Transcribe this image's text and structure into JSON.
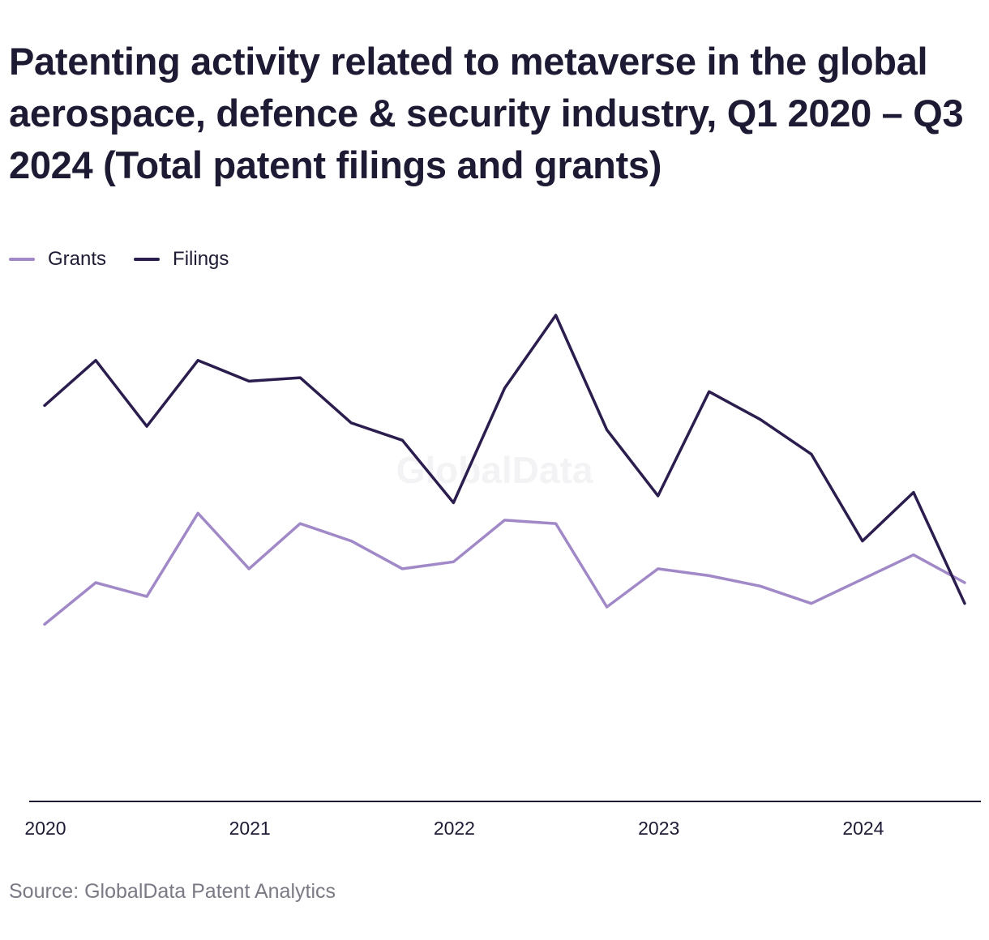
{
  "title": "Patenting activity related to metaverse in the global aerospace, defence & security industry, Q1 2020 – Q3 2024 (Total patent filings and grants)",
  "source": "Source: GlobalData Patent Analytics",
  "watermark": "GlobalData",
  "colors": {
    "grants": "#a189c8",
    "filings": "#2b1d4d",
    "axis": "#1d1a33",
    "text": "#1d1a33",
    "source": "#7a7a85",
    "watermark": "#f3f3f5"
  },
  "chart_data": {
    "type": "line",
    "x": [
      "Q1 2020",
      "Q2 2020",
      "Q3 2020",
      "Q4 2020",
      "Q1 2021",
      "Q2 2021",
      "Q3 2021",
      "Q4 2021",
      "Q1 2022",
      "Q2 2022",
      "Q3 2022",
      "Q4 2022",
      "Q1 2023",
      "Q2 2023",
      "Q3 2023",
      "Q4 2023",
      "Q1 2024",
      "Q2 2024",
      "Q3 2024"
    ],
    "x_tick_labels": [
      "2020",
      "2021",
      "2022",
      "2023",
      "2024"
    ],
    "x_tick_index": [
      0,
      4,
      8,
      12,
      16
    ],
    "ylim": [
      0,
      140
    ],
    "y_axis_labels_shown": false,
    "grid": false,
    "legend_position": "top-left",
    "series": [
      {
        "name": "Grants",
        "values": [
          51,
          63,
          59,
          83,
          67,
          80,
          75,
          67,
          69,
          81,
          80,
          56,
          67,
          65,
          62,
          57,
          64,
          71,
          63
        ]
      },
      {
        "name": "Filings",
        "values": [
          114,
          127,
          108,
          127,
          121,
          122,
          109,
          104,
          86,
          119,
          140,
          107,
          88,
          118,
          110,
          100,
          75,
          89,
          57
        ]
      }
    ]
  }
}
